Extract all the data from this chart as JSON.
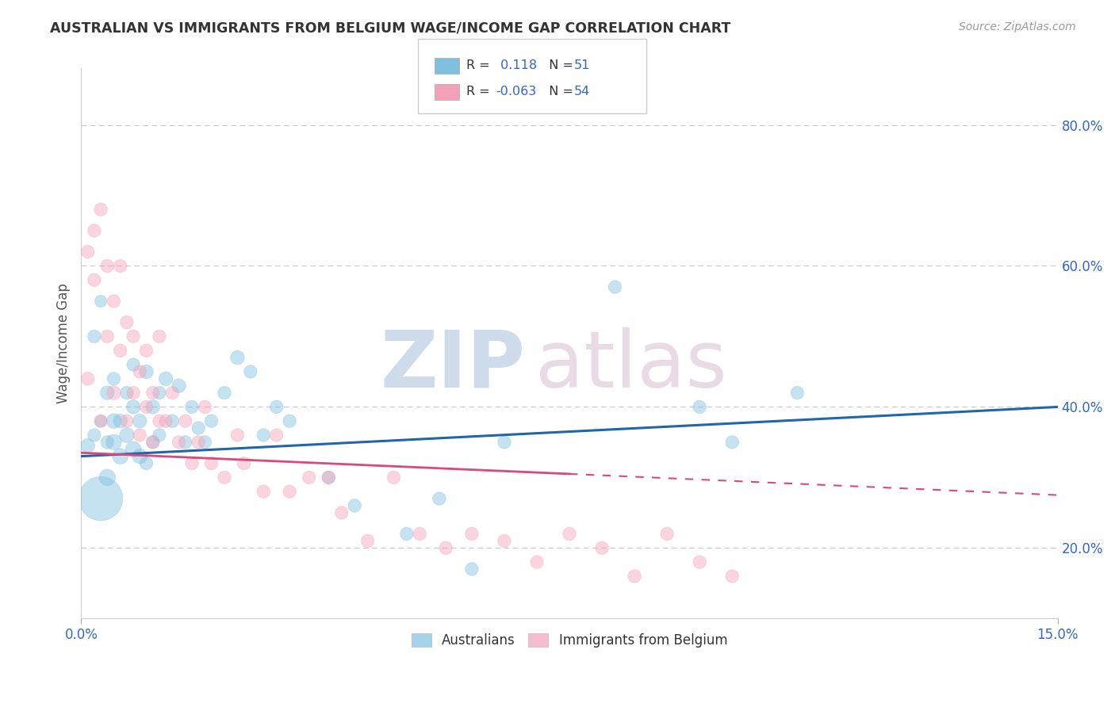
{
  "title": "AUSTRALIAN VS IMMIGRANTS FROM BELGIUM WAGE/INCOME GAP CORRELATION CHART",
  "source": "Source: ZipAtlas.com",
  "ylabel": "Wage/Income Gap",
  "xlim": [
    0.0,
    0.15
  ],
  "ylim": [
    0.1,
    0.88
  ],
  "xtick_labels": [
    "0.0%",
    "15.0%"
  ],
  "ytick_labels": [
    "20.0%",
    "40.0%",
    "60.0%",
    "80.0%"
  ],
  "ytick_values": [
    0.2,
    0.4,
    0.6,
    0.8
  ],
  "R_blue": 0.118,
  "N_blue": 51,
  "R_pink": -0.063,
  "N_pink": 54,
  "color_blue": "#7fbfdf",
  "color_pink": "#f4a0b8",
  "trend_blue": "#2166ac",
  "trend_pink": "#d9497a",
  "australians_x": [
    0.001,
    0.002,
    0.002,
    0.003,
    0.003,
    0.004,
    0.004,
    0.004,
    0.005,
    0.005,
    0.005,
    0.006,
    0.006,
    0.007,
    0.007,
    0.008,
    0.008,
    0.008,
    0.009,
    0.009,
    0.01,
    0.01,
    0.011,
    0.011,
    0.012,
    0.012,
    0.013,
    0.014,
    0.015,
    0.016,
    0.017,
    0.018,
    0.019,
    0.02,
    0.022,
    0.024,
    0.026,
    0.028,
    0.03,
    0.032,
    0.038,
    0.042,
    0.05,
    0.055,
    0.06,
    0.065,
    0.082,
    0.095,
    0.1,
    0.11,
    0.003
  ],
  "australians_y": [
    0.345,
    0.36,
    0.5,
    0.38,
    0.55,
    0.3,
    0.42,
    0.35,
    0.35,
    0.38,
    0.44,
    0.33,
    0.38,
    0.36,
    0.42,
    0.34,
    0.4,
    0.46,
    0.33,
    0.38,
    0.32,
    0.45,
    0.35,
    0.4,
    0.36,
    0.42,
    0.44,
    0.38,
    0.43,
    0.35,
    0.4,
    0.37,
    0.35,
    0.38,
    0.42,
    0.47,
    0.45,
    0.36,
    0.4,
    0.38,
    0.3,
    0.26,
    0.22,
    0.27,
    0.17,
    0.35,
    0.57,
    0.4,
    0.35,
    0.42,
    0.27
  ],
  "australians_size": [
    40,
    35,
    35,
    30,
    30,
    55,
    40,
    35,
    50,
    45,
    35,
    50,
    40,
    45,
    35,
    50,
    40,
    35,
    45,
    40,
    35,
    40,
    35,
    40,
    35,
    35,
    40,
    35,
    40,
    35,
    35,
    35,
    35,
    35,
    35,
    40,
    35,
    35,
    35,
    35,
    35,
    35,
    35,
    35,
    35,
    35,
    35,
    35,
    35,
    35,
    400
  ],
  "belgium_x": [
    0.001,
    0.001,
    0.002,
    0.002,
    0.003,
    0.003,
    0.004,
    0.004,
    0.005,
    0.005,
    0.006,
    0.006,
    0.007,
    0.007,
    0.008,
    0.008,
    0.009,
    0.009,
    0.01,
    0.01,
    0.011,
    0.011,
    0.012,
    0.012,
    0.013,
    0.014,
    0.015,
    0.016,
    0.017,
    0.018,
    0.019,
    0.02,
    0.022,
    0.024,
    0.025,
    0.028,
    0.03,
    0.032,
    0.035,
    0.038,
    0.04,
    0.044,
    0.048,
    0.052,
    0.056,
    0.06,
    0.065,
    0.07,
    0.075,
    0.08,
    0.085,
    0.09,
    0.095,
    0.1
  ],
  "belgium_y": [
    0.44,
    0.62,
    0.58,
    0.65,
    0.38,
    0.68,
    0.5,
    0.6,
    0.42,
    0.55,
    0.48,
    0.6,
    0.38,
    0.52,
    0.42,
    0.5,
    0.36,
    0.45,
    0.4,
    0.48,
    0.35,
    0.42,
    0.38,
    0.5,
    0.38,
    0.42,
    0.35,
    0.38,
    0.32,
    0.35,
    0.4,
    0.32,
    0.3,
    0.36,
    0.32,
    0.28,
    0.36,
    0.28,
    0.3,
    0.3,
    0.25,
    0.21,
    0.3,
    0.22,
    0.2,
    0.22,
    0.21,
    0.18,
    0.22,
    0.2,
    0.16,
    0.22,
    0.18,
    0.16
  ],
  "belgium_size": [
    35,
    35,
    35,
    35,
    35,
    35,
    35,
    35,
    40,
    35,
    35,
    35,
    35,
    35,
    35,
    35,
    35,
    35,
    35,
    35,
    35,
    35,
    35,
    35,
    35,
    35,
    35,
    35,
    35,
    35,
    35,
    35,
    35,
    35,
    35,
    35,
    35,
    35,
    35,
    35,
    35,
    35,
    35,
    35,
    35,
    35,
    35,
    35,
    35,
    35,
    35,
    35,
    35,
    35
  ],
  "trend_blue_y0": 0.33,
  "trend_blue_y1": 0.4,
  "trend_pink_y0": 0.335,
  "trend_pink_y1": 0.275,
  "trend_pink_solid_x1": 0.075
}
